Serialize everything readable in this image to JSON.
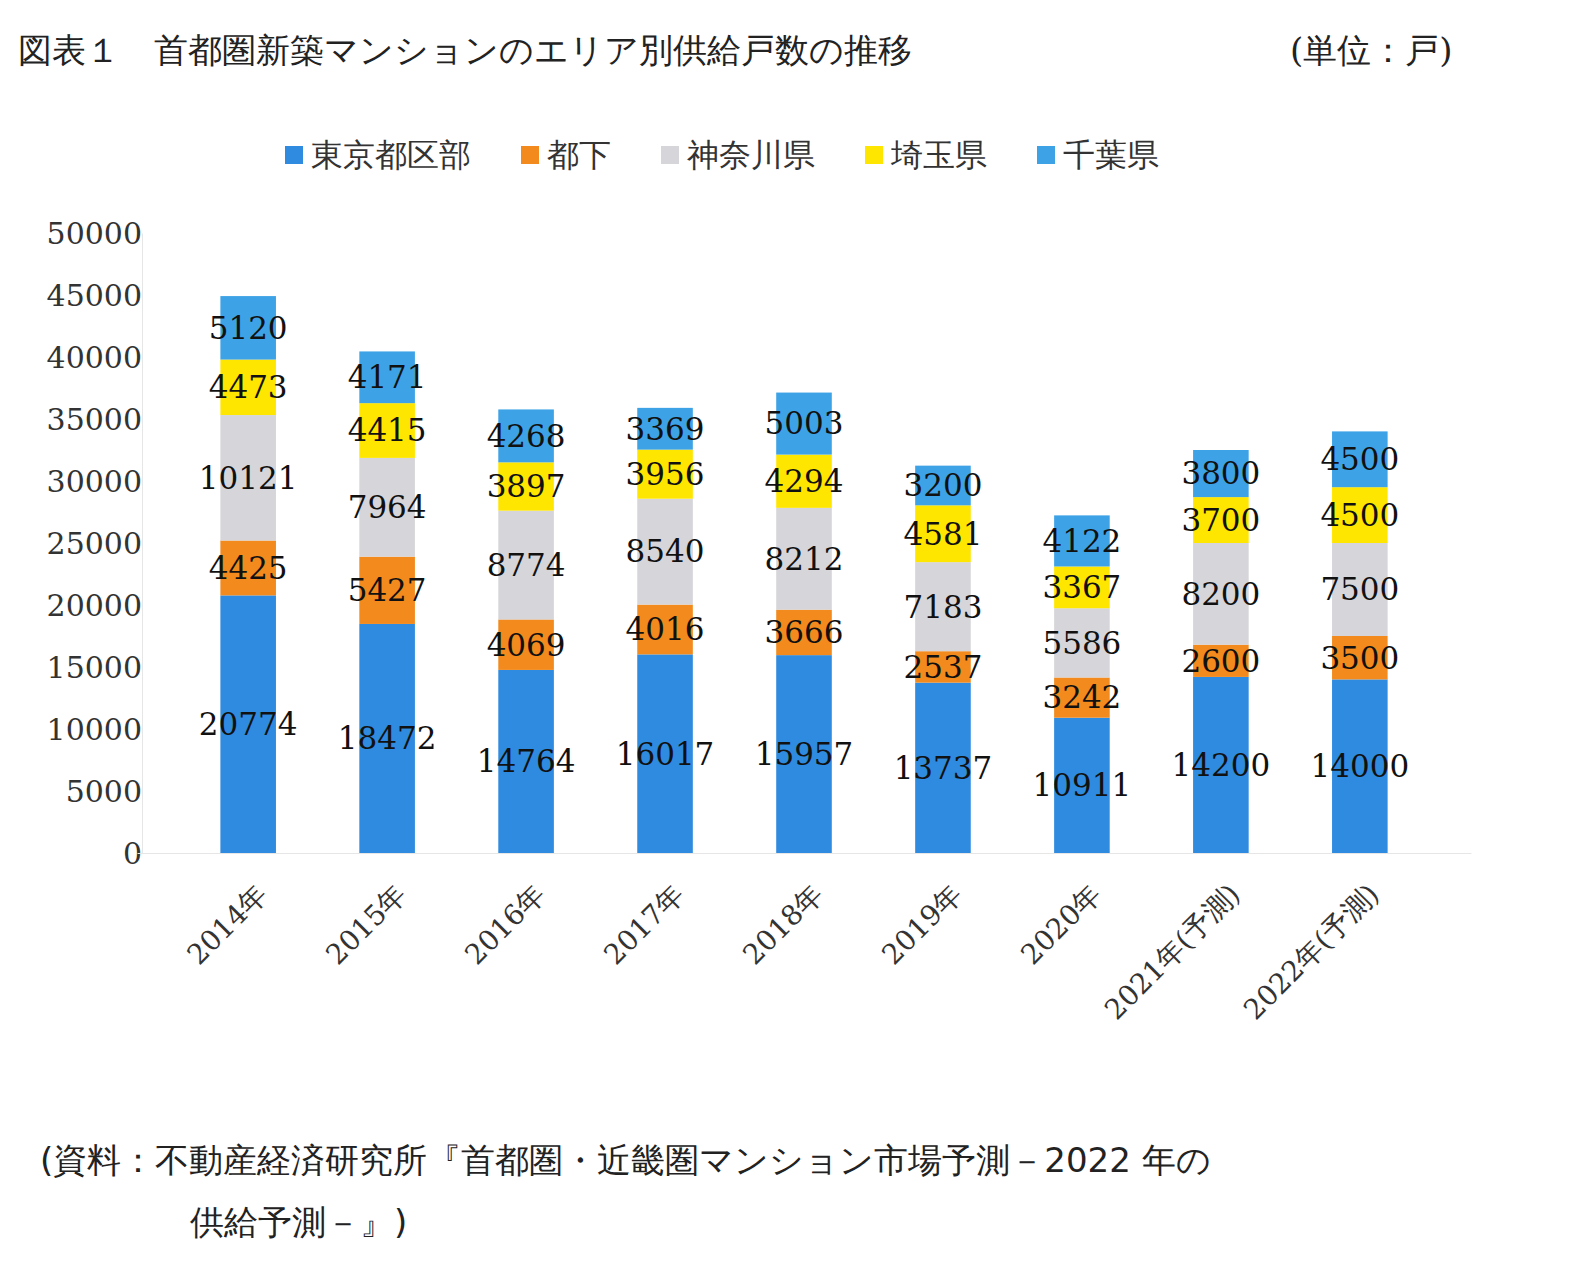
{
  "chart_data": {
    "type": "bar",
    "title": "図表１　首都圏新築マンションのエリア別供給戸数の推移",
    "subtitle": "(単位：戸)",
    "source": [
      "(資料：不動産経済研究所『首都圏・近畿圏マンション市場予測－2022 年の",
      "供給予測－』)"
    ],
    "categories": [
      "2014年",
      "2015年",
      "2016年",
      "2017年",
      "2018年",
      "2019年",
      "2020年",
      "2021年(予測)",
      "2022年(予測)"
    ],
    "series": [
      {
        "name": "東京都区部",
        "color": "#2f8be0",
        "values": [
          20774,
          18472,
          14764,
          16017,
          15957,
          13737,
          10911,
          14200,
          14000
        ]
      },
      {
        "name": "都下",
        "color": "#f28a1e",
        "values": [
          4425,
          5427,
          4069,
          4016,
          3666,
          2537,
          3242,
          2600,
          3500
        ]
      },
      {
        "name": "神奈川県",
        "color": "#d6d6da",
        "values": [
          10121,
          7964,
          8774,
          8540,
          8212,
          7183,
          5586,
          8200,
          7500
        ]
      },
      {
        "name": "埼玉県",
        "color": "#ffe600",
        "values": [
          4473,
          4415,
          3897,
          3956,
          4294,
          4581,
          3367,
          3700,
          4500
        ]
      },
      {
        "name": "千葉県",
        "color": "#3ea3e6",
        "values": [
          5120,
          4171,
          4268,
          3369,
          5003,
          3200,
          4122,
          3800,
          4500
        ]
      }
    ],
    "stacked": true,
    "data_labels": true,
    "grid": false,
    "legend": "top",
    "ylim": [
      0,
      50000
    ],
    "yticks": [
      0,
      5000,
      10000,
      15000,
      20000,
      25000,
      30000,
      35000,
      40000,
      45000,
      50000
    ]
  }
}
